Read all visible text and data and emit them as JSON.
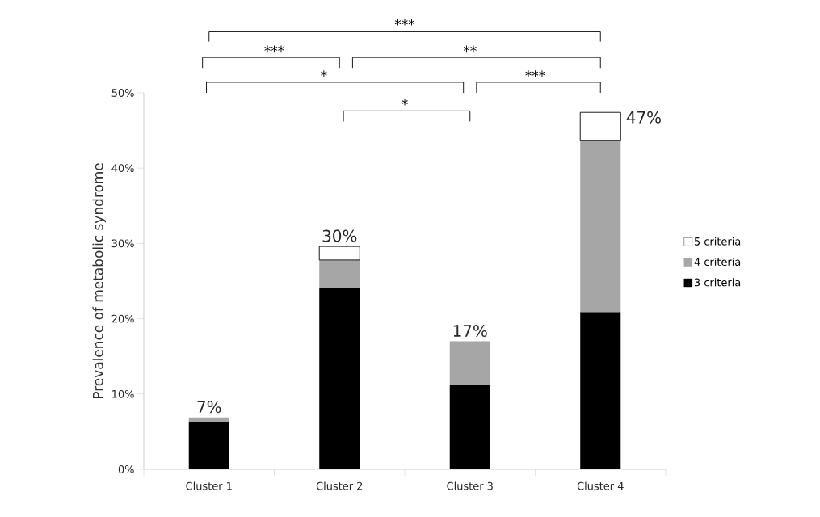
{
  "chart_data": {
    "type": "bar",
    "stacked": true,
    "ylabel": "Prevalence of metabolic syndrome",
    "categories": [
      "Cluster 1",
      "Cluster 2",
      "Cluster 3",
      "Cluster 4"
    ],
    "series": [
      {
        "name": "3 criteria",
        "color": "#000000",
        "values": [
          6.3,
          24.1,
          11.2,
          20.9
        ]
      },
      {
        "name": "4 criteria",
        "color": "#a6a6a6",
        "values": [
          0.6,
          3.7,
          5.8,
          22.8
        ]
      },
      {
        "name": "5 criteria",
        "color": "#ffffff",
        "values": [
          null,
          1.8,
          null,
          3.7
        ]
      }
    ],
    "ylim": [
      0,
      50
    ],
    "yticks": [
      {
        "value": 0,
        "label": "0%"
      },
      {
        "value": 10,
        "label": "10%"
      },
      {
        "value": 20,
        "label": "20%"
      },
      {
        "value": 30,
        "label": "30%"
      },
      {
        "value": 40,
        "label": "40%"
      },
      {
        "value": 50,
        "label": "50%"
      }
    ],
    "totals": [
      "7%",
      "30%",
      "17%",
      "47%"
    ],
    "legend": "right",
    "annotations": [
      "***",
      "***",
      "**",
      "*",
      "***",
      "*"
    ]
  }
}
